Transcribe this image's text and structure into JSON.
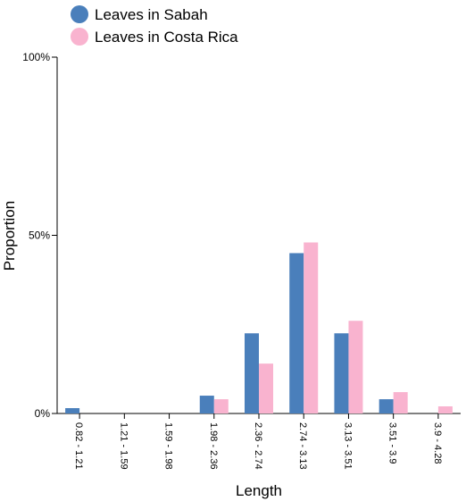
{
  "chart_data": {
    "type": "bar",
    "xlabel": "Length",
    "ylabel": "Proportion",
    "ylim": [
      0,
      100
    ],
    "y_ticks": [
      "0%",
      "50%",
      "100%"
    ],
    "y_tick_values": [
      0,
      50,
      100
    ],
    "categories": [
      "0.82 - 1.21",
      "1.21 - 1.59",
      "1.59 - 1.98",
      "1.98 - 2.36",
      "2.36 - 2.74",
      "2.74 - 3.13",
      "3.13 - 3.51",
      "3.51 - 3.9",
      "3.9 - 4.28"
    ],
    "series": [
      {
        "name": "Leaves in Sabah",
        "color": "#4a7fbb",
        "values": [
          1.5,
          0,
          0,
          5,
          22.5,
          45,
          22.5,
          4,
          0
        ]
      },
      {
        "name": "Leaves in Costa Rica",
        "color": "#f9b3cf",
        "values": [
          0,
          0,
          0,
          4,
          14,
          48,
          26,
          6,
          2
        ]
      }
    ],
    "legend_position": "top-left",
    "grid": false
  }
}
